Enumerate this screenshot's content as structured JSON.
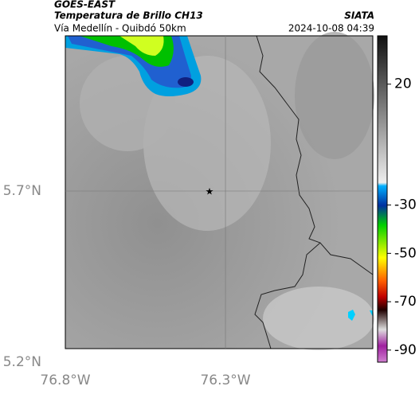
{
  "header": {
    "title": "GOES-EAST",
    "subtitle": "Temperatura de Brillo CH13",
    "region": "Vía Medellín - Quibdó 50km",
    "source": "SIATA",
    "datetime": "2024-10-08 04:39"
  },
  "map": {
    "xlim": [
      -76.8,
      -75.84
    ],
    "ylim": [
      5.24,
      6.153
    ],
    "xticks": [
      {
        "value": -76.8,
        "label": "76.8°W"
      },
      {
        "value": -76.3,
        "label": "76.3°W"
      }
    ],
    "yticks": [
      {
        "value": 5.7,
        "label": "5.7°N"
      },
      {
        "value": 5.2,
        "label": "5.2°N"
      }
    ]
  },
  "colorbar": {
    "lim": [
      40,
      -95
    ],
    "ticks": [
      20,
      -30,
      -50,
      -70,
      -90
    ]
  }
}
